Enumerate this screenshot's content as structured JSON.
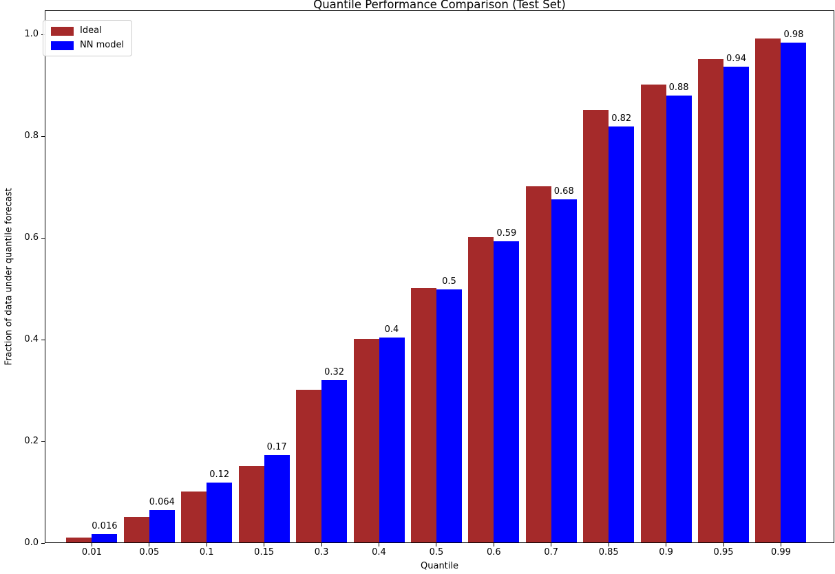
{
  "chart_data": {
    "type": "bar",
    "title": "Quantile Performance Comparison (Test Set)",
    "xlabel": "Quantile",
    "ylabel": "Fraction of data under quantile forecast",
    "categories": [
      "0.01",
      "0.05",
      "0.1",
      "0.15",
      "0.3",
      "0.4",
      "0.5",
      "0.6",
      "0.7",
      "0.85",
      "0.9",
      "0.95",
      "0.99"
    ],
    "series": [
      {
        "name": "Ideal",
        "color": "#a52a2a",
        "values": [
          0.01,
          0.05,
          0.1,
          0.15,
          0.3,
          0.4,
          0.5,
          0.6,
          0.7,
          0.85,
          0.9,
          0.95,
          0.99
        ]
      },
      {
        "name": "NN model",
        "color": "#0000ff",
        "values": [
          0.016,
          0.064,
          0.117,
          0.171,
          0.319,
          0.403,
          0.497,
          0.592,
          0.675,
          0.817,
          0.878,
          0.935,
          0.982
        ],
        "bar_labels": [
          "0.016",
          "0.064",
          "0.12",
          "0.17",
          "0.32",
          "0.4",
          "0.5",
          "0.59",
          "0.68",
          "0.82",
          "0.88",
          "0.94",
          "0.98"
        ]
      }
    ],
    "yticks": [
      "0.0",
      "0.2",
      "0.4",
      "0.6",
      "0.8",
      "1.0"
    ],
    "ylim": [
      0,
      1.047
    ],
    "xlim_categories_evenly_spaced": true,
    "grid": false,
    "legend": {
      "position": "upper left",
      "entries": [
        "Ideal",
        "NN model"
      ]
    },
    "spine_color": "#000000",
    "background_color": "#ffffff"
  }
}
